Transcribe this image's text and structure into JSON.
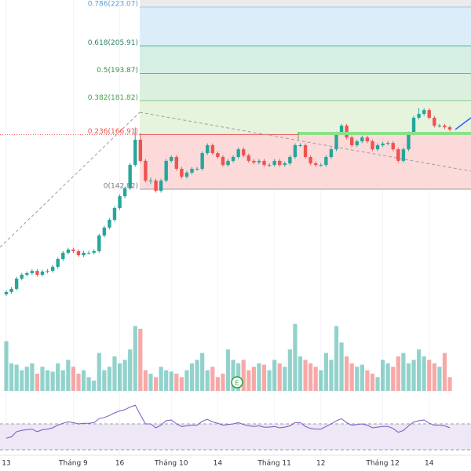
{
  "chart_data": {
    "type": "candlestick",
    "categories": [
      "13",
      null,
      null,
      null,
      null,
      null,
      null,
      null,
      null,
      null,
      null,
      null,
      null,
      "Tháng 9",
      null,
      null,
      null,
      null,
      null,
      null,
      null,
      null,
      "16",
      null,
      null,
      null,
      null,
      null,
      null,
      null,
      null,
      null,
      "Tháng 10",
      null,
      null,
      null,
      null,
      null,
      null,
      null,
      null,
      "14",
      null,
      null,
      null,
      null,
      null,
      null,
      null,
      null,
      null,
      null,
      "Tháng 11",
      null,
      null,
      null,
      null,
      null,
      null,
      null,
      null,
      "12",
      null,
      null,
      null,
      null,
      null,
      null,
      null,
      null,
      null,
      null,
      null,
      "Tháng 12",
      null,
      null,
      null,
      null,
      null,
      null,
      null,
      null,
      "14",
      null,
      null,
      null,
      null
    ],
    "open": [
      96.5,
      97.5,
      98.9,
      103.4,
      105.1,
      105.8,
      106.8,
      105.1,
      106.5,
      106.8,
      108.6,
      112.0,
      114.8,
      116.2,
      115.5,
      113.7,
      114.8,
      114.8,
      115.5,
      122.4,
      125.9,
      129.3,
      134.5,
      139.7,
      143.2,
      153.5,
      164.6,
      155.3,
      146.6,
      146.6,
      142.1,
      146.6,
      155.3,
      157.0,
      151.8,
      148.3,
      150.1,
      151.8,
      151.8,
      158.7,
      162.2,
      158.7,
      157.0,
      153.5,
      155.3,
      157.0,
      160.4,
      157.7,
      155.3,
      154.6,
      155.3,
      153.5,
      153.5,
      155.3,
      153.5,
      154.2,
      157.0,
      162.2,
      162.2,
      157.0,
      154.2,
      153.5,
      153.5,
      157.0,
      160.4,
      167.4,
      170.8,
      165.6,
      162.2,
      163.9,
      165.6,
      163.9,
      160.4,
      162.2,
      162.9,
      163.2,
      160.4,
      155.3,
      160.4,
      167.4,
      174.3,
      176.0,
      177.7,
      174.3,
      170.8,
      170.8,
      170.1
    ],
    "high": [
      98.3,
      99.7,
      104.2,
      105.9,
      106.6,
      107.6,
      107.6,
      107.3,
      107.6,
      109.4,
      112.8,
      115.6,
      117.0,
      117.0,
      116.3,
      115.6,
      115.6,
      116.3,
      123.2,
      126.7,
      130.1,
      135.3,
      140.5,
      144.0,
      154.3,
      170.0,
      167.5,
      156.1,
      148.0,
      147.4,
      147.4,
      156.1,
      157.8,
      157.8,
      152.6,
      150.9,
      152.6,
      152.6,
      159.5,
      163.0,
      163.0,
      159.5,
      157.8,
      156.1,
      157.8,
      161.2,
      161.2,
      158.5,
      156.1,
      156.1,
      156.1,
      154.3,
      156.1,
      156.1,
      155.0,
      157.8,
      163.0,
      163.0,
      163.0,
      157.8,
      155.0,
      154.3,
      157.8,
      161.2,
      168.2,
      171.6,
      171.6,
      166.4,
      164.7,
      166.4,
      166.4,
      164.7,
      163.0,
      163.7,
      164.0,
      164.0,
      161.2,
      161.2,
      168.2,
      175.1,
      178.5,
      178.5,
      178.5,
      175.1,
      171.6,
      171.6,
      170.9
    ],
    "low": [
      95.7,
      96.7,
      98.1,
      102.6,
      104.3,
      105.0,
      104.3,
      104.3,
      105.7,
      106.0,
      107.8,
      111.2,
      114.0,
      114.7,
      112.9,
      112.9,
      114.0,
      114.0,
      114.7,
      121.6,
      125.1,
      128.5,
      133.7,
      138.9,
      142.4,
      152.7,
      154.5,
      145.8,
      145.0,
      141.3,
      141.3,
      145.8,
      154.5,
      151.0,
      147.5,
      147.5,
      149.3,
      151.0,
      151.0,
      157.9,
      157.9,
      156.2,
      152.7,
      152.7,
      154.5,
      156.2,
      156.9,
      154.5,
      153.8,
      153.8,
      152.7,
      152.7,
      152.7,
      152.7,
      152.7,
      153.4,
      156.2,
      161.4,
      156.2,
      153.4,
      152.7,
      152.7,
      152.7,
      156.2,
      159.6,
      166.6,
      164.8,
      161.4,
      161.4,
      163.1,
      163.1,
      159.6,
      159.6,
      161.4,
      162.1,
      159.6,
      154.5,
      154.5,
      159.6,
      166.6,
      173.5,
      175.2,
      173.5,
      170.0,
      170.0,
      169.3,
      168.3
    ],
    "close": [
      97.5,
      98.9,
      103.4,
      105.1,
      105.8,
      106.8,
      105.1,
      106.5,
      106.8,
      108.6,
      112.0,
      114.8,
      116.2,
      115.5,
      113.7,
      114.8,
      114.8,
      115.5,
      122.4,
      125.9,
      129.3,
      134.5,
      139.7,
      143.2,
      153.5,
      164.6,
      155.3,
      146.6,
      146.6,
      142.1,
      146.6,
      155.3,
      157.0,
      151.8,
      148.3,
      150.1,
      151.8,
      151.8,
      158.7,
      162.2,
      158.7,
      157.0,
      153.5,
      155.3,
      157.0,
      160.4,
      157.7,
      155.3,
      154.6,
      155.3,
      153.5,
      153.5,
      155.3,
      153.5,
      154.2,
      157.0,
      162.2,
      162.2,
      157.0,
      154.2,
      153.5,
      153.5,
      157.0,
      160.4,
      167.4,
      170.8,
      165.6,
      162.2,
      163.9,
      165.6,
      163.9,
      160.4,
      162.2,
      162.9,
      163.2,
      160.4,
      155.3,
      160.4,
      167.4,
      174.3,
      176.0,
      177.7,
      174.3,
      170.8,
      170.8,
      170.1,
      169.1
    ],
    "ylim": [
      87.8,
      226.2
    ],
    "up_color": "#26a69a",
    "down_color": "#ef5350",
    "fib_levels": [
      {
        "value": 223.07,
        "label": "0.786(223.07)",
        "line_color": "#9cc6e6",
        "label_color": "#5b9bd5",
        "zone_color": "#dcedfa"
      },
      {
        "value": 205.91,
        "label": "0.618(205.91)",
        "line_color": "#4caf8c",
        "label_color": "#2e7d6b",
        "zone_color": "#d6efe4"
      },
      {
        "value": 193.87,
        "label": "0.5(193.87)",
        "line_color": "#66bb6a",
        "label_color": "#388e3c",
        "zone_color": "#dcf0e0"
      },
      {
        "value": 181.82,
        "label": "0.382(181.82)",
        "line_color": "#81c784",
        "label_color": "#43a047",
        "zone_color": "#e6f4de"
      },
      {
        "value": 166.91,
        "label": "0.236(166.91)",
        "line_color": "#ef5350",
        "label_color": "#ef5350",
        "zone_color": "#fcdada"
      },
      {
        "value": 142.82,
        "label": "0(142.82)",
        "line_color": "#9e9e9e",
        "label_color": "#777777"
      }
    ],
    "fib_top_color": "#ebebeb",
    "volume": {
      "ylim": [
        0,
        100
      ],
      "values": [
        72,
        40,
        38,
        30,
        35,
        40,
        25,
        35,
        30,
        28,
        40,
        30,
        45,
        35,
        25,
        30,
        20,
        15,
        55,
        30,
        35,
        50,
        40,
        45,
        60,
        94,
        90,
        30,
        25,
        20,
        35,
        30,
        28,
        25,
        20,
        30,
        40,
        45,
        55,
        30,
        35,
        20,
        25,
        60,
        45,
        40,
        45,
        30,
        35,
        40,
        38,
        30,
        45,
        40,
        35,
        60,
        97,
        50,
        45,
        40,
        35,
        30,
        55,
        45,
        94,
        70,
        50,
        40,
        35,
        38,
        30,
        25,
        20,
        45,
        40,
        35,
        50,
        55,
        40,
        45,
        60,
        50,
        45,
        40,
        35,
        55,
        20
      ]
    },
    "rsi": {
      "ylim": [
        0,
        100
      ],
      "bands": [
        30,
        70
      ],
      "color": "#7e57c2",
      "band_color": "#ede7f6",
      "values": [
        48,
        50,
        58,
        60,
        61,
        62,
        58,
        61,
        62,
        64,
        68,
        71,
        73,
        72,
        70,
        71,
        71,
        72,
        78,
        80,
        83,
        87,
        90,
        92,
        96,
        99,
        84,
        70,
        70,
        64,
        68,
        75,
        76,
        70,
        66,
        67,
        68,
        68,
        74,
        77,
        73,
        71,
        68,
        69,
        70,
        72,
        69,
        67,
        66,
        67,
        65,
        65,
        66,
        64,
        65,
        67,
        72,
        72,
        66,
        63,
        62,
        62,
        66,
        70,
        75,
        78,
        72,
        68,
        69,
        70,
        68,
        64,
        65,
        66,
        66,
        63,
        57,
        60,
        67,
        73,
        75,
        76,
        71,
        68,
        68,
        67,
        64
      ]
    },
    "event_label": "E"
  }
}
